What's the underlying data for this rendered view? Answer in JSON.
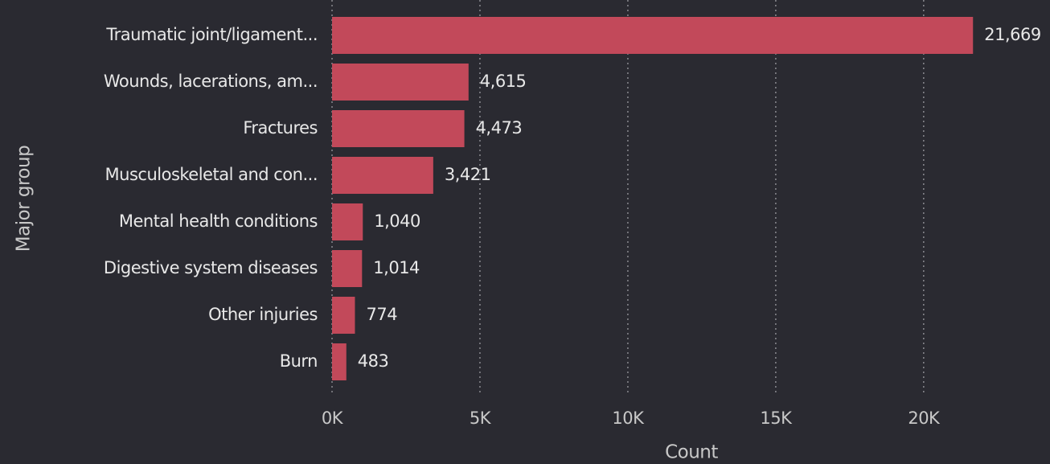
{
  "chart_data": {
    "type": "bar",
    "orientation": "horizontal",
    "x_label": "Count",
    "y_label": "Major group",
    "categories": [
      "Traumatic joint/ligament...",
      "Wounds, lacerations, am...",
      "Fractures",
      "Musculoskeletal and con...",
      "Mental health conditions",
      "Digestive system diseases",
      "Other injuries",
      "Burn"
    ],
    "values": [
      21669,
      4615,
      4473,
      3421,
      1040,
      1014,
      774,
      483
    ],
    "value_labels": [
      "21,669",
      "4,615",
      "4,473",
      "3,421",
      "1,040",
      "1,014",
      "774",
      "483"
    ],
    "color": "#c2495a",
    "xlim": [
      0,
      24000
    ],
    "xticks": [
      {
        "value": 0,
        "label": "0K"
      },
      {
        "value": 5000,
        "label": "5K"
      },
      {
        "value": 10000,
        "label": "10K"
      },
      {
        "value": 15000,
        "label": "15K"
      },
      {
        "value": 20000,
        "label": "20K"
      }
    ],
    "grid": true
  }
}
